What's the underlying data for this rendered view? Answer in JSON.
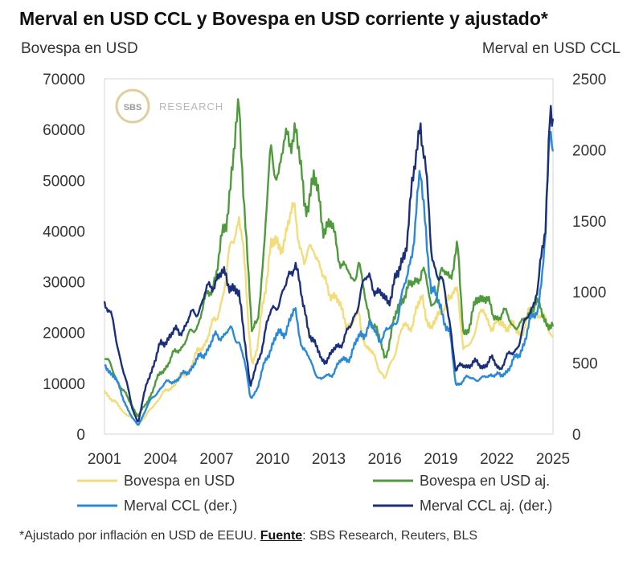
{
  "chart_data": {
    "type": "line",
    "title": "Merval en USD CCL y Bovespa en USD corriente y ajustado*",
    "y_left_label": "Bovespa en USD",
    "y_right_label": "Merval en USD CCL",
    "x_ticks": [
      "2001",
      "2004",
      "2007",
      "2010",
      "2013",
      "2016",
      "2019",
      "2022",
      "2025"
    ],
    "x_range": [
      2001,
      2025
    ],
    "y_left_ticks": [
      "0",
      "10000",
      "20000",
      "30000",
      "40000",
      "50000",
      "60000",
      "70000"
    ],
    "y_left_range": [
      0,
      70000
    ],
    "y_right_ticks": [
      "0",
      "500",
      "1000",
      "1500",
      "2000",
      "2500"
    ],
    "y_right_range": [
      0,
      2500
    ],
    "series": [
      {
        "name": "Bovespa en USD",
        "axis": "left",
        "color": "#f2dc7c",
        "points": [
          [
            2001,
            8500
          ],
          [
            2001.5,
            6500
          ],
          [
            2002,
            4500
          ],
          [
            2002.5,
            3000
          ],
          [
            2002.8,
            2000
          ],
          [
            2003.3,
            4000
          ],
          [
            2004,
            7500
          ],
          [
            2004.5,
            9000
          ],
          [
            2005,
            11000
          ],
          [
            2005.5,
            12500
          ],
          [
            2006,
            16000
          ],
          [
            2006.5,
            19000
          ],
          [
            2007,
            23000
          ],
          [
            2007.5,
            30000
          ],
          [
            2007.8,
            38000
          ],
          [
            2008.2,
            43000
          ],
          [
            2008.4,
            37000
          ],
          [
            2008.7,
            22000
          ],
          [
            2008.9,
            14000
          ],
          [
            2009.2,
            17000
          ],
          [
            2009.5,
            26000
          ],
          [
            2009.9,
            38000
          ],
          [
            2010.3,
            36000
          ],
          [
            2010.8,
            41000
          ],
          [
            2011.2,
            44000
          ],
          [
            2011.7,
            33000
          ],
          [
            2012.2,
            38000
          ],
          [
            2012.7,
            30000
          ],
          [
            2013.2,
            28000
          ],
          [
            2013.7,
            24000
          ],
          [
            2014.2,
            21000
          ],
          [
            2014.6,
            24000
          ],
          [
            2015,
            17000
          ],
          [
            2015.5,
            15000
          ],
          [
            2016,
            10500
          ],
          [
            2016.5,
            16000
          ],
          [
            2017,
            21000
          ],
          [
            2017.5,
            22000
          ],
          [
            2018,
            27000
          ],
          [
            2018.5,
            20000
          ],
          [
            2019,
            25000
          ],
          [
            2019.5,
            26000
          ],
          [
            2019.9,
            30000
          ],
          [
            2020.2,
            16000
          ],
          [
            2020.6,
            18000
          ],
          [
            2020.9,
            22000
          ],
          [
            2021.3,
            24000
          ],
          [
            2021.8,
            21000
          ],
          [
            2022.3,
            22000
          ],
          [
            2022.8,
            21000
          ],
          [
            2023.3,
            20000
          ],
          [
            2023.8,
            24000
          ],
          [
            2024.3,
            24000
          ],
          [
            2024.7,
            21000
          ],
          [
            2025,
            19500
          ]
        ]
      },
      {
        "name": "Bovespa en USD aj.",
        "axis": "left",
        "color": "#4e9a3c",
        "points": [
          [
            2001,
            15500
          ],
          [
            2001.5,
            12000
          ],
          [
            2002,
            8500
          ],
          [
            2002.5,
            5500
          ],
          [
            2002.8,
            3500
          ],
          [
            2003.3,
            6500
          ],
          [
            2004,
            12000
          ],
          [
            2004.5,
            14500
          ],
          [
            2005,
            17000
          ],
          [
            2005.5,
            19000
          ],
          [
            2006,
            22000
          ],
          [
            2006.5,
            27000
          ],
          [
            2007,
            32000
          ],
          [
            2007.5,
            42000
          ],
          [
            2007.8,
            52000
          ],
          [
            2008.2,
            63000
          ],
          [
            2008.4,
            52000
          ],
          [
            2008.7,
            32000
          ],
          [
            2008.9,
            19000
          ],
          [
            2009.2,
            23000
          ],
          [
            2009.5,
            35000
          ],
          [
            2009.9,
            55000
          ],
          [
            2010.3,
            52000
          ],
          [
            2010.8,
            58000
          ],
          [
            2011.2,
            61000
          ],
          [
            2011.7,
            45000
          ],
          [
            2012.2,
            50000
          ],
          [
            2012.7,
            42000
          ],
          [
            2013.2,
            40000
          ],
          [
            2013.7,
            34000
          ],
          [
            2014.2,
            30000
          ],
          [
            2014.6,
            34000
          ],
          [
            2015,
            25000
          ],
          [
            2015.5,
            21000
          ],
          [
            2016,
            15000
          ],
          [
            2016.5,
            22000
          ],
          [
            2017,
            28000
          ],
          [
            2017.5,
            29000
          ],
          [
            2018,
            33000
          ],
          [
            2018.5,
            25000
          ],
          [
            2019,
            31000
          ],
          [
            2019.5,
            32000
          ],
          [
            2019.9,
            36000
          ],
          [
            2020.2,
            20000
          ],
          [
            2020.6,
            22000
          ],
          [
            2020.9,
            26000
          ],
          [
            2021.3,
            28000
          ],
          [
            2021.8,
            23000
          ],
          [
            2022.3,
            24000
          ],
          [
            2022.8,
            22000
          ],
          [
            2023.3,
            21000
          ],
          [
            2023.8,
            25000
          ],
          [
            2024.3,
            25000
          ],
          [
            2024.7,
            22000
          ],
          [
            2025,
            20500
          ]
        ]
      },
      {
        "name": "Merval CCL (der.)",
        "axis": "right",
        "color": "#2b8ad6",
        "points": [
          [
            2001,
            480
          ],
          [
            2001.5,
            420
          ],
          [
            2002,
            250
          ],
          [
            2002.5,
            110
          ],
          [
            2002.8,
            60
          ],
          [
            2003.3,
            200
          ],
          [
            2004,
            330
          ],
          [
            2004.5,
            370
          ],
          [
            2005,
            390
          ],
          [
            2005.5,
            450
          ],
          [
            2006,
            520
          ],
          [
            2006.5,
            600
          ],
          [
            2007,
            690
          ],
          [
            2007.5,
            710
          ],
          [
            2007.8,
            720
          ],
          [
            2008.2,
            660
          ],
          [
            2008.5,
            500
          ],
          [
            2008.8,
            260
          ],
          [
            2009.2,
            320
          ],
          [
            2009.7,
            560
          ],
          [
            2010.2,
            680
          ],
          [
            2010.7,
            740
          ],
          [
            2011.2,
            860
          ],
          [
            2011.6,
            620
          ],
          [
            2012.1,
            480
          ],
          [
            2012.6,
            380
          ],
          [
            2013.1,
            420
          ],
          [
            2013.6,
            500
          ],
          [
            2014.2,
            560
          ],
          [
            2014.7,
            700
          ],
          [
            2015.2,
            760
          ],
          [
            2015.7,
            680
          ],
          [
            2016.2,
            720
          ],
          [
            2016.7,
            840
          ],
          [
            2017.2,
            1100
          ],
          [
            2017.6,
            1450
          ],
          [
            2017.9,
            1800
          ],
          [
            2018.1,
            1600
          ],
          [
            2018.5,
            1000
          ],
          [
            2019,
            900
          ],
          [
            2019.5,
            680
          ],
          [
            2019.8,
            350
          ],
          [
            2020.2,
            380
          ],
          [
            2020.7,
            400
          ],
          [
            2021.2,
            380
          ],
          [
            2021.7,
            430
          ],
          [
            2022.2,
            400
          ],
          [
            2022.7,
            480
          ],
          [
            2023.2,
            560
          ],
          [
            2023.7,
            750
          ],
          [
            2024.2,
            900
          ],
          [
            2024.6,
            1350
          ],
          [
            2024.85,
            2200
          ],
          [
            2025,
            2050
          ]
        ]
      },
      {
        "name": "Merval CCL aj. (der.)",
        "axis": "right",
        "color": "#1b2f7a",
        "points": [
          [
            2001,
            950
          ],
          [
            2001.5,
            750
          ],
          [
            2002,
            450
          ],
          [
            2002.5,
            180
          ],
          [
            2002.8,
            80
          ],
          [
            2003.3,
            380
          ],
          [
            2004,
            620
          ],
          [
            2004.5,
            700
          ],
          [
            2005,
            720
          ],
          [
            2005.5,
            800
          ],
          [
            2006,
            880
          ],
          [
            2006.5,
            1000
          ],
          [
            2007,
            1110
          ],
          [
            2007.5,
            1100
          ],
          [
            2007.8,
            1060
          ],
          [
            2008.2,
            950
          ],
          [
            2008.5,
            700
          ],
          [
            2008.8,
            330
          ],
          [
            2009.2,
            500
          ],
          [
            2009.7,
            780
          ],
          [
            2010.2,
            920
          ],
          [
            2010.7,
            1020
          ],
          [
            2011.2,
            1250
          ],
          [
            2011.6,
            900
          ],
          [
            2012.1,
            680
          ],
          [
            2012.6,
            520
          ],
          [
            2013.1,
            550
          ],
          [
            2013.6,
            640
          ],
          [
            2014.2,
            750
          ],
          [
            2014.7,
            1000
          ],
          [
            2015.2,
            1120
          ],
          [
            2015.7,
            960
          ],
          [
            2016.2,
            960
          ],
          [
            2016.7,
            1100
          ],
          [
            2017.2,
            1400
          ],
          [
            2017.6,
            1850
          ],
          [
            2017.9,
            2260
          ],
          [
            2018.1,
            2000
          ],
          [
            2018.5,
            1250
          ],
          [
            2019,
            1100
          ],
          [
            2019.5,
            780
          ],
          [
            2019.8,
            450
          ],
          [
            2020.2,
            480
          ],
          [
            2020.7,
            500
          ],
          [
            2021.2,
            480
          ],
          [
            2021.7,
            520
          ],
          [
            2022.2,
            470
          ],
          [
            2022.7,
            560
          ],
          [
            2023.2,
            640
          ],
          [
            2023.7,
            860
          ],
          [
            2024.2,
            1000
          ],
          [
            2024.6,
            1500
          ],
          [
            2024.85,
            2350
          ],
          [
            2025,
            2150
          ]
        ]
      }
    ],
    "legend": [
      "Bovespa en USD",
      "Bovespa en USD aj.",
      "Merval CCL (der.)",
      "Merval CCL aj. (der.)"
    ]
  },
  "watermark": {
    "logo_text": "SBS",
    "text": "RESEARCH"
  },
  "footnote": {
    "prefix": "*Ajustado por inflación en USD de EEUU. ",
    "source_label": "Fuente",
    "suffix": ": SBS Research, Reuters, BLS"
  }
}
